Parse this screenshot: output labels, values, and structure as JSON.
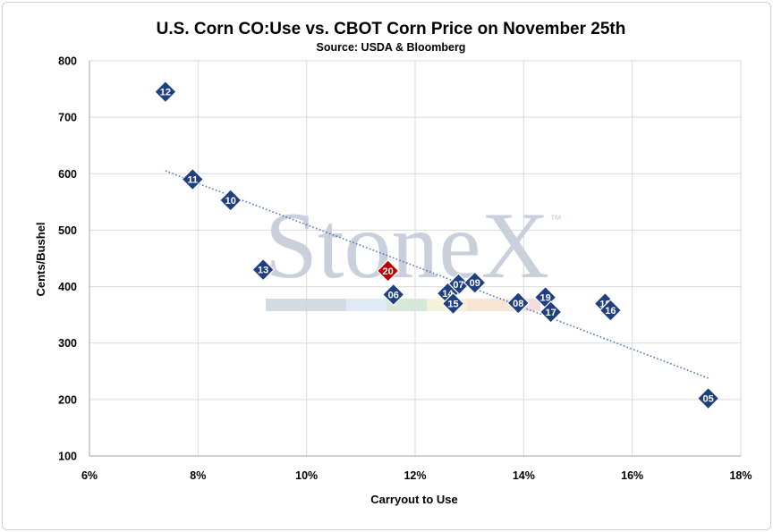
{
  "chart_data": {
    "type": "scatter",
    "title": "U.S. Corn CO:Use vs. CBOT Corn Price on November 25th",
    "subtitle": "Source: USDA & Bloomberg",
    "xlabel": "Carryout to Use",
    "ylabel": "Cents/Bushel",
    "xlim": [
      6,
      18
    ],
    "ylim": [
      100,
      800
    ],
    "x_ticks": [
      6,
      8,
      10,
      12,
      14,
      16,
      18
    ],
    "x_tick_labels": [
      "6%",
      "8%",
      "10%",
      "12%",
      "14%",
      "16%",
      "18%"
    ],
    "y_ticks": [
      100,
      200,
      300,
      400,
      500,
      600,
      700,
      800
    ],
    "y_tick_labels": [
      "100",
      "200",
      "300",
      "400",
      "500",
      "600",
      "700",
      "800"
    ],
    "grid": true,
    "points": [
      {
        "label": "12",
        "x": 7.4,
        "y": 745,
        "highlight": false
      },
      {
        "label": "11",
        "x": 7.9,
        "y": 590,
        "highlight": false
      },
      {
        "label": "10",
        "x": 8.6,
        "y": 553,
        "highlight": false
      },
      {
        "label": "13",
        "x": 9.2,
        "y": 430,
        "highlight": false
      },
      {
        "label": "20",
        "x": 11.5,
        "y": 428,
        "highlight": true
      },
      {
        "label": "06",
        "x": 11.6,
        "y": 386,
        "highlight": false
      },
      {
        "label": "07",
        "x": 12.8,
        "y": 404,
        "highlight": false
      },
      {
        "label": "14",
        "x": 12.6,
        "y": 388,
        "highlight": false
      },
      {
        "label": "15",
        "x": 12.7,
        "y": 370,
        "highlight": false
      },
      {
        "label": "09",
        "x": 13.1,
        "y": 407,
        "highlight": false
      },
      {
        "label": "08",
        "x": 13.9,
        "y": 371,
        "highlight": false
      },
      {
        "label": "19",
        "x": 14.4,
        "y": 381,
        "highlight": false
      },
      {
        "label": "17",
        "x": 14.5,
        "y": 355,
        "highlight": false
      },
      {
        "label": "18",
        "x": 15.5,
        "y": 370,
        "highlight": false
      },
      {
        "label": "16",
        "x": 15.6,
        "y": 358,
        "highlight": false
      },
      {
        "label": "05",
        "x": 17.4,
        "y": 202,
        "highlight": false
      }
    ],
    "trendline": {
      "x": [
        7.4,
        17.4
      ],
      "y": [
        605,
        238
      ],
      "style": "dotted"
    },
    "colors": {
      "marker": "#1f3f80",
      "highlight": "#c00000",
      "trendline": "#4472c4",
      "grid": "#d9d9d9"
    }
  },
  "watermark": {
    "text": "StoneX",
    "trademark": "™"
  }
}
